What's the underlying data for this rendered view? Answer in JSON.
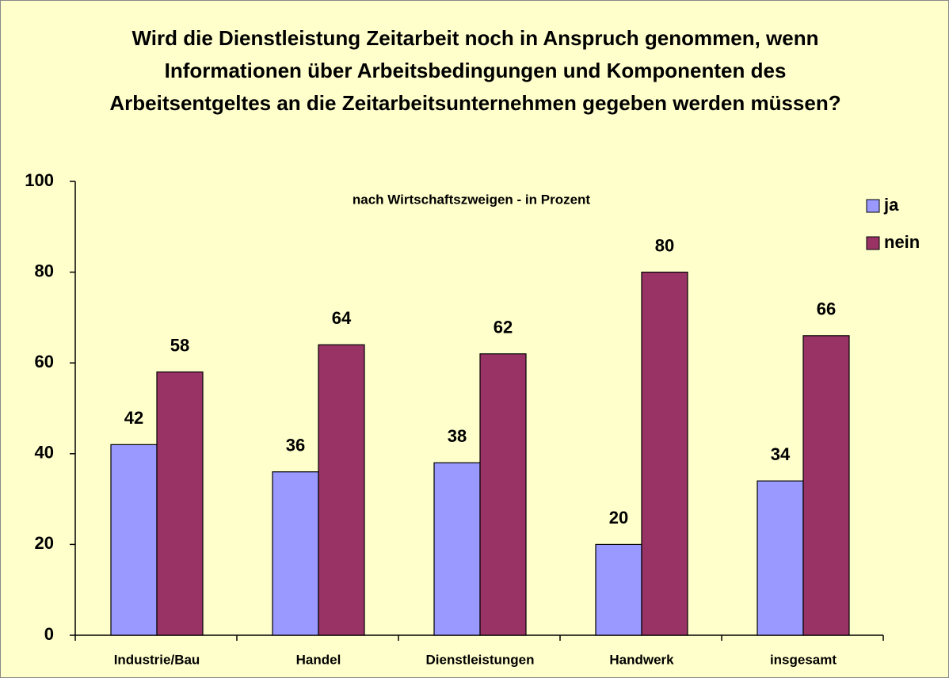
{
  "chart_data": {
    "type": "bar",
    "title": "Wird die Dienstleistung Zeitarbeit noch in Anspruch genommen, wenn Informationen über Arbeitsbedingungen und Komponenten des Arbeitsentgeltes an die Zeitarbeitsunternehmen gegeben werden müssen?",
    "subtitle": "nach Wirtschaftszweigen - in Prozent",
    "categories": [
      "Industrie/Bau",
      "Handel",
      "Dienstleistungen",
      "Handwerk",
      "insgesamt"
    ],
    "series": [
      {
        "name": "ja",
        "color": "#9999ff",
        "values": [
          42,
          36,
          38,
          20,
          34
        ]
      },
      {
        "name": "nein",
        "color": "#993366",
        "values": [
          58,
          64,
          62,
          80,
          66
        ]
      }
    ],
    "ylim": [
      0,
      100
    ],
    "yticks": [
      0,
      20,
      40,
      60,
      80,
      100
    ],
    "legend": "right"
  }
}
